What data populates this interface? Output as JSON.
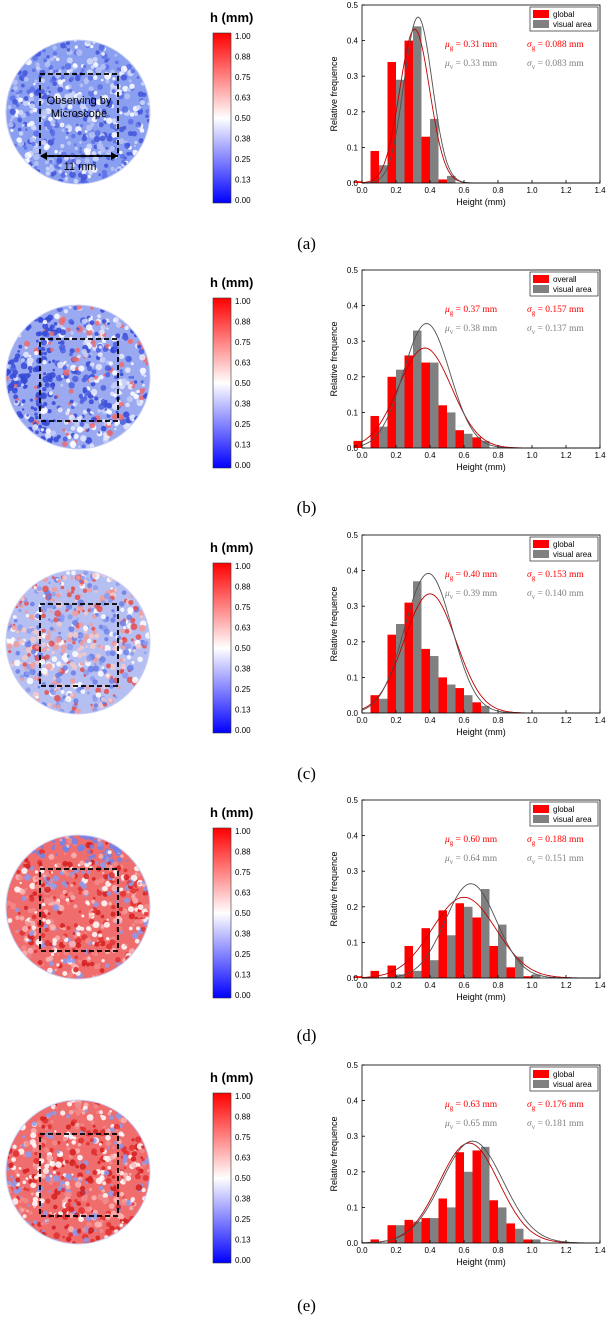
{
  "colorbar": {
    "title": "h (mm)",
    "ticks": [
      "1.00",
      "0.88",
      "0.75",
      "0.63",
      "0.50",
      "0.38",
      "0.25",
      "0.13",
      "0.00"
    ],
    "colors": {
      "high": "#ff0000",
      "mid": "#ffffff",
      "low": "#0000ff"
    }
  },
  "panels": [
    {
      "label": "(a)",
      "map": {
        "dominant": "blue",
        "annotation_text_1": "Observing by",
        "annotation_text_2": "Microscope",
        "scale_text": "11 mm"
      },
      "stats": {
        "g": "= 0.31 mm",
        "sg": "= 0.088 mm",
        "v": "= 0.33 mm",
        "sv": "= 0.083 mm"
      }
    },
    {
      "label": "(b)",
      "map": {
        "dominant": "blue-red"
      },
      "stats": {
        "g": "= 0.37 mm",
        "sg": "= 0.157 mm",
        "v": "= 0.38 mm",
        "sv": "= 0.137 mm"
      }
    },
    {
      "label": "(c)",
      "map": {
        "dominant": "mixed"
      },
      "stats": {
        "g": "= 0.40 mm",
        "sg": "= 0.153 mm",
        "v": "= 0.39 mm",
        "sv": "= 0.140 mm"
      }
    },
    {
      "label": "(d)",
      "map": {
        "dominant": "red"
      },
      "stats": {
        "g": "= 0.60 mm",
        "sg": "= 0.188 mm",
        "v": "= 0.64 mm",
        "sv": "= 0.151 mm"
      }
    },
    {
      "label": "(e)",
      "map": {
        "dominant": "red"
      },
      "stats": {
        "g": "= 0.63 mm",
        "sg": "= 0.176 mm",
        "v": "= 0.65 mm",
        "sv": "= 0.181 mm"
      }
    }
  ],
  "chart_data": [
    {
      "type": "bar",
      "xlabel": "Height (mm)",
      "ylabel": "Relative frequence",
      "xlim": [
        0,
        1.4
      ],
      "ylim": [
        0,
        0.5
      ],
      "xticks": [
        "0.0",
        "0.2",
        "0.4",
        "0.6",
        "0.8",
        "1.0",
        "1.2",
        "1.4"
      ],
      "yticks": [
        "0.0",
        "0.1",
        "0.2",
        "0.3",
        "0.4",
        "0.5"
      ],
      "legend_position": "top-right",
      "colors": {
        "global": "#ff0000",
        "visual": "#808080",
        "fit_global": "#c00000",
        "fit_visual": "#505050"
      },
      "x": [
        0.0,
        0.1,
        0.2,
        0.3,
        0.4,
        0.5,
        0.6
      ],
      "series": [
        {
          "name": "global",
          "values": [
            0.005,
            0.09,
            0.34,
            0.4,
            0.13,
            0.01,
            0.0
          ]
        },
        {
          "name": "visual area",
          "values": [
            0.0,
            0.05,
            0.29,
            0.44,
            0.18,
            0.02,
            0.0
          ]
        }
      ],
      "fits": [
        {
          "mu": 0.31,
          "sigma": 0.088
        },
        {
          "mu": 0.33,
          "sigma": 0.083
        }
      ]
    },
    {
      "type": "bar",
      "xlabel": "Height (mm)",
      "ylabel": "Relative frequence",
      "xlim": [
        0,
        1.4
      ],
      "ylim": [
        0,
        0.5
      ],
      "xticks": [
        "0.0",
        "0.2",
        "0.4",
        "0.6",
        "0.8",
        "1.0",
        "1.2",
        "1.4"
      ],
      "yticks": [
        "0.0",
        "0.1",
        "0.2",
        "0.3",
        "0.4",
        "0.5"
      ],
      "legend_position": "top-right",
      "colors": {
        "global": "#ff0000",
        "visual": "#808080",
        "fit_global": "#c00000",
        "fit_visual": "#505050"
      },
      "x": [
        0.0,
        0.1,
        0.2,
        0.3,
        0.4,
        0.5,
        0.6,
        0.7
      ],
      "series": [
        {
          "name": "overall",
          "values": [
            0.02,
            0.09,
            0.2,
            0.26,
            0.24,
            0.12,
            0.05,
            0.03
          ]
        },
        {
          "name": "visual area",
          "values": [
            0.0,
            0.06,
            0.22,
            0.33,
            0.24,
            0.1,
            0.04,
            0.02
          ]
        }
      ],
      "fits": [
        {
          "mu": 0.37,
          "sigma": 0.157
        },
        {
          "mu": 0.38,
          "sigma": 0.137
        }
      ]
    },
    {
      "type": "bar",
      "xlabel": "Height (mm)",
      "ylabel": "Relative frequence",
      "xlim": [
        0,
        1.4
      ],
      "ylim": [
        0,
        0.5
      ],
      "xticks": [
        "0.0",
        "0.2",
        "0.4",
        "0.6",
        "0.8",
        "1.0",
        "1.2",
        "1.4"
      ],
      "yticks": [
        "0.0",
        "0.1",
        "0.2",
        "0.3",
        "0.4",
        "0.5"
      ],
      "legend_position": "top-right",
      "colors": {
        "global": "#ff0000",
        "visual": "#808080",
        "fit_global": "#c00000",
        "fit_visual": "#505050"
      },
      "x": [
        0.1,
        0.2,
        0.3,
        0.4,
        0.5,
        0.6,
        0.7
      ],
      "series": [
        {
          "name": "global",
          "values": [
            0.05,
            0.22,
            0.31,
            0.18,
            0.1,
            0.07,
            0.03
          ]
        },
        {
          "name": "visual area",
          "values": [
            0.04,
            0.25,
            0.37,
            0.16,
            0.08,
            0.05,
            0.02
          ]
        }
      ],
      "fits": [
        {
          "mu": 0.4,
          "sigma": 0.153
        },
        {
          "mu": 0.39,
          "sigma": 0.14
        }
      ]
    },
    {
      "type": "bar",
      "xlabel": "Height (mm)",
      "ylabel": "Relative frequence",
      "xlim": [
        0,
        1.4
      ],
      "ylim": [
        0,
        0.5
      ],
      "xticks": [
        "0.0",
        "0.2",
        "0.4",
        "0.6",
        "0.8",
        "1.0",
        "1.2",
        "1.4"
      ],
      "yticks": [
        "0.0",
        "0.1",
        "0.2",
        "0.3",
        "0.4",
        "0.5"
      ],
      "legend_position": "top-right",
      "colors": {
        "global": "#ff0000",
        "visual": "#808080",
        "fit_global": "#c00000",
        "fit_visual": "#505050"
      },
      "x": [
        0.0,
        0.1,
        0.2,
        0.3,
        0.4,
        0.5,
        0.6,
        0.7,
        0.8,
        0.9,
        1.0
      ],
      "series": [
        {
          "name": "global",
          "values": [
            0.005,
            0.02,
            0.035,
            0.09,
            0.14,
            0.19,
            0.21,
            0.17,
            0.09,
            0.03,
            0.005
          ]
        },
        {
          "name": "visual area",
          "values": [
            0.0,
            0.0,
            0.01,
            0.02,
            0.05,
            0.12,
            0.2,
            0.25,
            0.15,
            0.06,
            0.01
          ]
        }
      ],
      "fits": [
        {
          "mu": 0.6,
          "sigma": 0.188
        },
        {
          "mu": 0.64,
          "sigma": 0.151
        }
      ]
    },
    {
      "type": "bar",
      "xlabel": "Height (mm)",
      "ylabel": "Relative frequence",
      "xlim": [
        0,
        1.4
      ],
      "ylim": [
        0,
        0.5
      ],
      "xticks": [
        "0.0",
        "0.2",
        "0.4",
        "0.6",
        "0.8",
        "1.0",
        "1.2",
        "1.4"
      ],
      "yticks": [
        "0.0",
        "0.1",
        "0.2",
        "0.3",
        "0.4",
        "0.5"
      ],
      "legend_position": "top-right",
      "colors": {
        "global": "#ff0000",
        "visual": "#808080",
        "fit_global": "#c00000",
        "fit_visual": "#505050"
      },
      "x": [
        0.1,
        0.2,
        0.3,
        0.4,
        0.5,
        0.6,
        0.7,
        0.8,
        0.9,
        1.0
      ],
      "series": [
        {
          "name": "global",
          "values": [
            0.01,
            0.05,
            0.065,
            0.07,
            0.125,
            0.255,
            0.26,
            0.12,
            0.055,
            0.01
          ]
        },
        {
          "name": "visual area",
          "values": [
            0.0,
            0.05,
            0.06,
            0.07,
            0.1,
            0.2,
            0.27,
            0.1,
            0.04,
            0.01
          ]
        }
      ],
      "fits": [
        {
          "mu": 0.63,
          "sigma": 0.176
        },
        {
          "mu": 0.65,
          "sigma": 0.181
        }
      ]
    }
  ]
}
